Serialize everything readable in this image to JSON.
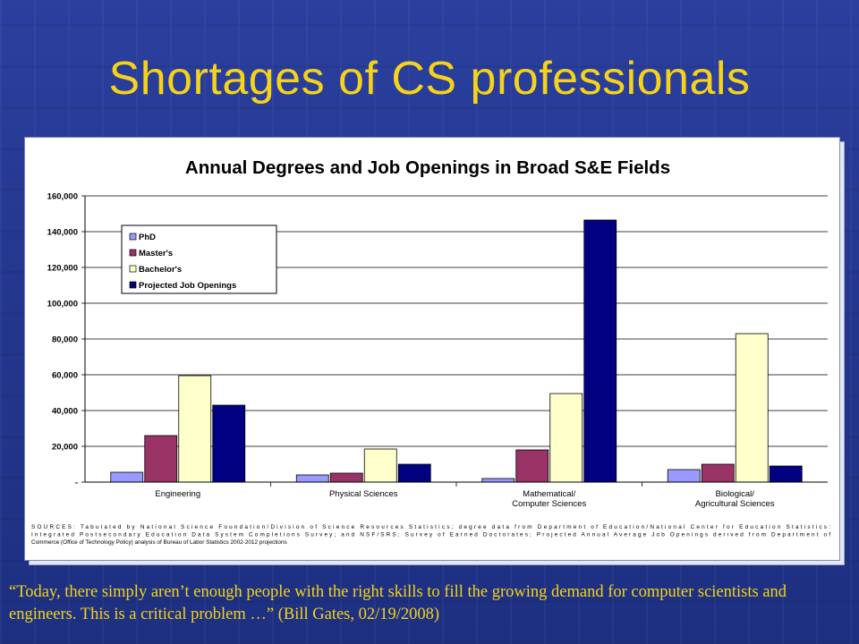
{
  "slide": {
    "title": "Shortages of CS professionals",
    "quote": "“Today, there simply aren’t enough people with the right skills to fill the growing demand for computer scientists and engineers. This is a critical problem …” (Bill Gates, 02/19/2008)"
  },
  "chart_data": {
    "type": "bar",
    "title": "Annual Degrees and Job Openings in Broad S&E Fields",
    "categories": [
      [
        "Engineering"
      ],
      [
        "Physical Sciences"
      ],
      [
        "Mathematical/",
        "Computer Sciences"
      ],
      [
        "Biological/",
        "Agricultural Sciences"
      ]
    ],
    "series": [
      {
        "name": "PhD",
        "color": "#9999ff",
        "values": [
          5500,
          4000,
          2000,
          7000
        ]
      },
      {
        "name": "Master's",
        "color": "#993366",
        "values": [
          26000,
          5000,
          18000,
          10000
        ]
      },
      {
        "name": "Bachelor's",
        "color": "#ffffcc",
        "values": [
          59500,
          18500,
          49500,
          83000
        ]
      },
      {
        "name": "Projected Job Openings",
        "color": "#000080",
        "values": [
          43000,
          10000,
          146500,
          9000
        ]
      }
    ],
    "ylim": [
      0,
      160000
    ],
    "yticks": [
      0,
      20000,
      40000,
      60000,
      80000,
      100000,
      120000,
      140000,
      160000
    ],
    "ytick_labels": [
      "-",
      "20,000",
      "40,000",
      "60,000",
      "80,000",
      "100,000",
      "120,000",
      "140,000",
      "160,000"
    ],
    "grid": true,
    "legend_position": "top-left",
    "source": "SOURCES:  Tabulated by National Science Foundation/Division of Science Resources Statistics; degree data from Department of Education/National Center for Education Statistics: Integrated Postsecondary Education Data System Completions Survey; and NSF/SRS; Survey of Earned Doctorates; Projected Annual Average Job Openings derived from Department of Commerce (Office of Technology Policy) analysis of Bureau of Labor Statistics 2002-2012 projections"
  }
}
